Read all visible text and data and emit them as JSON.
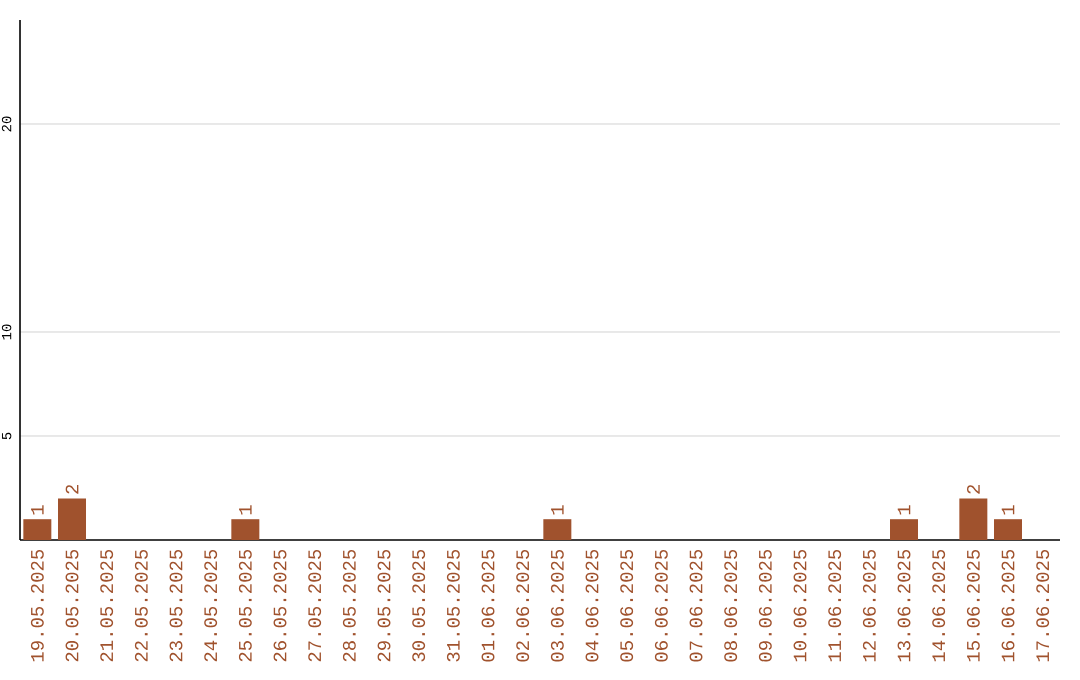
{
  "chart_data": {
    "type": "bar",
    "categories": [
      "19.05.2025",
      "20.05.2025",
      "21.05.2025",
      "22.05.2025",
      "23.05.2025",
      "24.05.2025",
      "25.05.2025",
      "26.05.2025",
      "27.05.2025",
      "28.05.2025",
      "29.05.2025",
      "30.05.2025",
      "31.05.2025",
      "01.06.2025",
      "02.06.2025",
      "03.06.2025",
      "04.06.2025",
      "05.06.2025",
      "06.06.2025",
      "07.06.2025",
      "08.06.2025",
      "09.06.2025",
      "10.06.2025",
      "11.06.2025",
      "12.06.2025",
      "13.06.2025",
      "14.06.2025",
      "15.06.2025",
      "16.06.2025",
      "17.06.2025"
    ],
    "values": [
      1,
      2,
      0,
      0,
      0,
      0,
      1,
      0,
      0,
      0,
      0,
      0,
      0,
      0,
      0,
      1,
      0,
      0,
      0,
      0,
      0,
      0,
      0,
      0,
      0,
      1,
      0,
      2,
      1,
      0
    ],
    "value_labels": [
      "1",
      "2",
      null,
      null,
      null,
      null,
      "1",
      null,
      null,
      null,
      null,
      null,
      null,
      null,
      null,
      "1",
      null,
      null,
      null,
      null,
      null,
      null,
      null,
      null,
      null,
      "1",
      null,
      "2",
      "1",
      null
    ],
    "color": "#a0522d",
    "ylim": [
      0,
      25
    ],
    "yticks": [
      5,
      10,
      20
    ],
    "grid": "y"
  }
}
